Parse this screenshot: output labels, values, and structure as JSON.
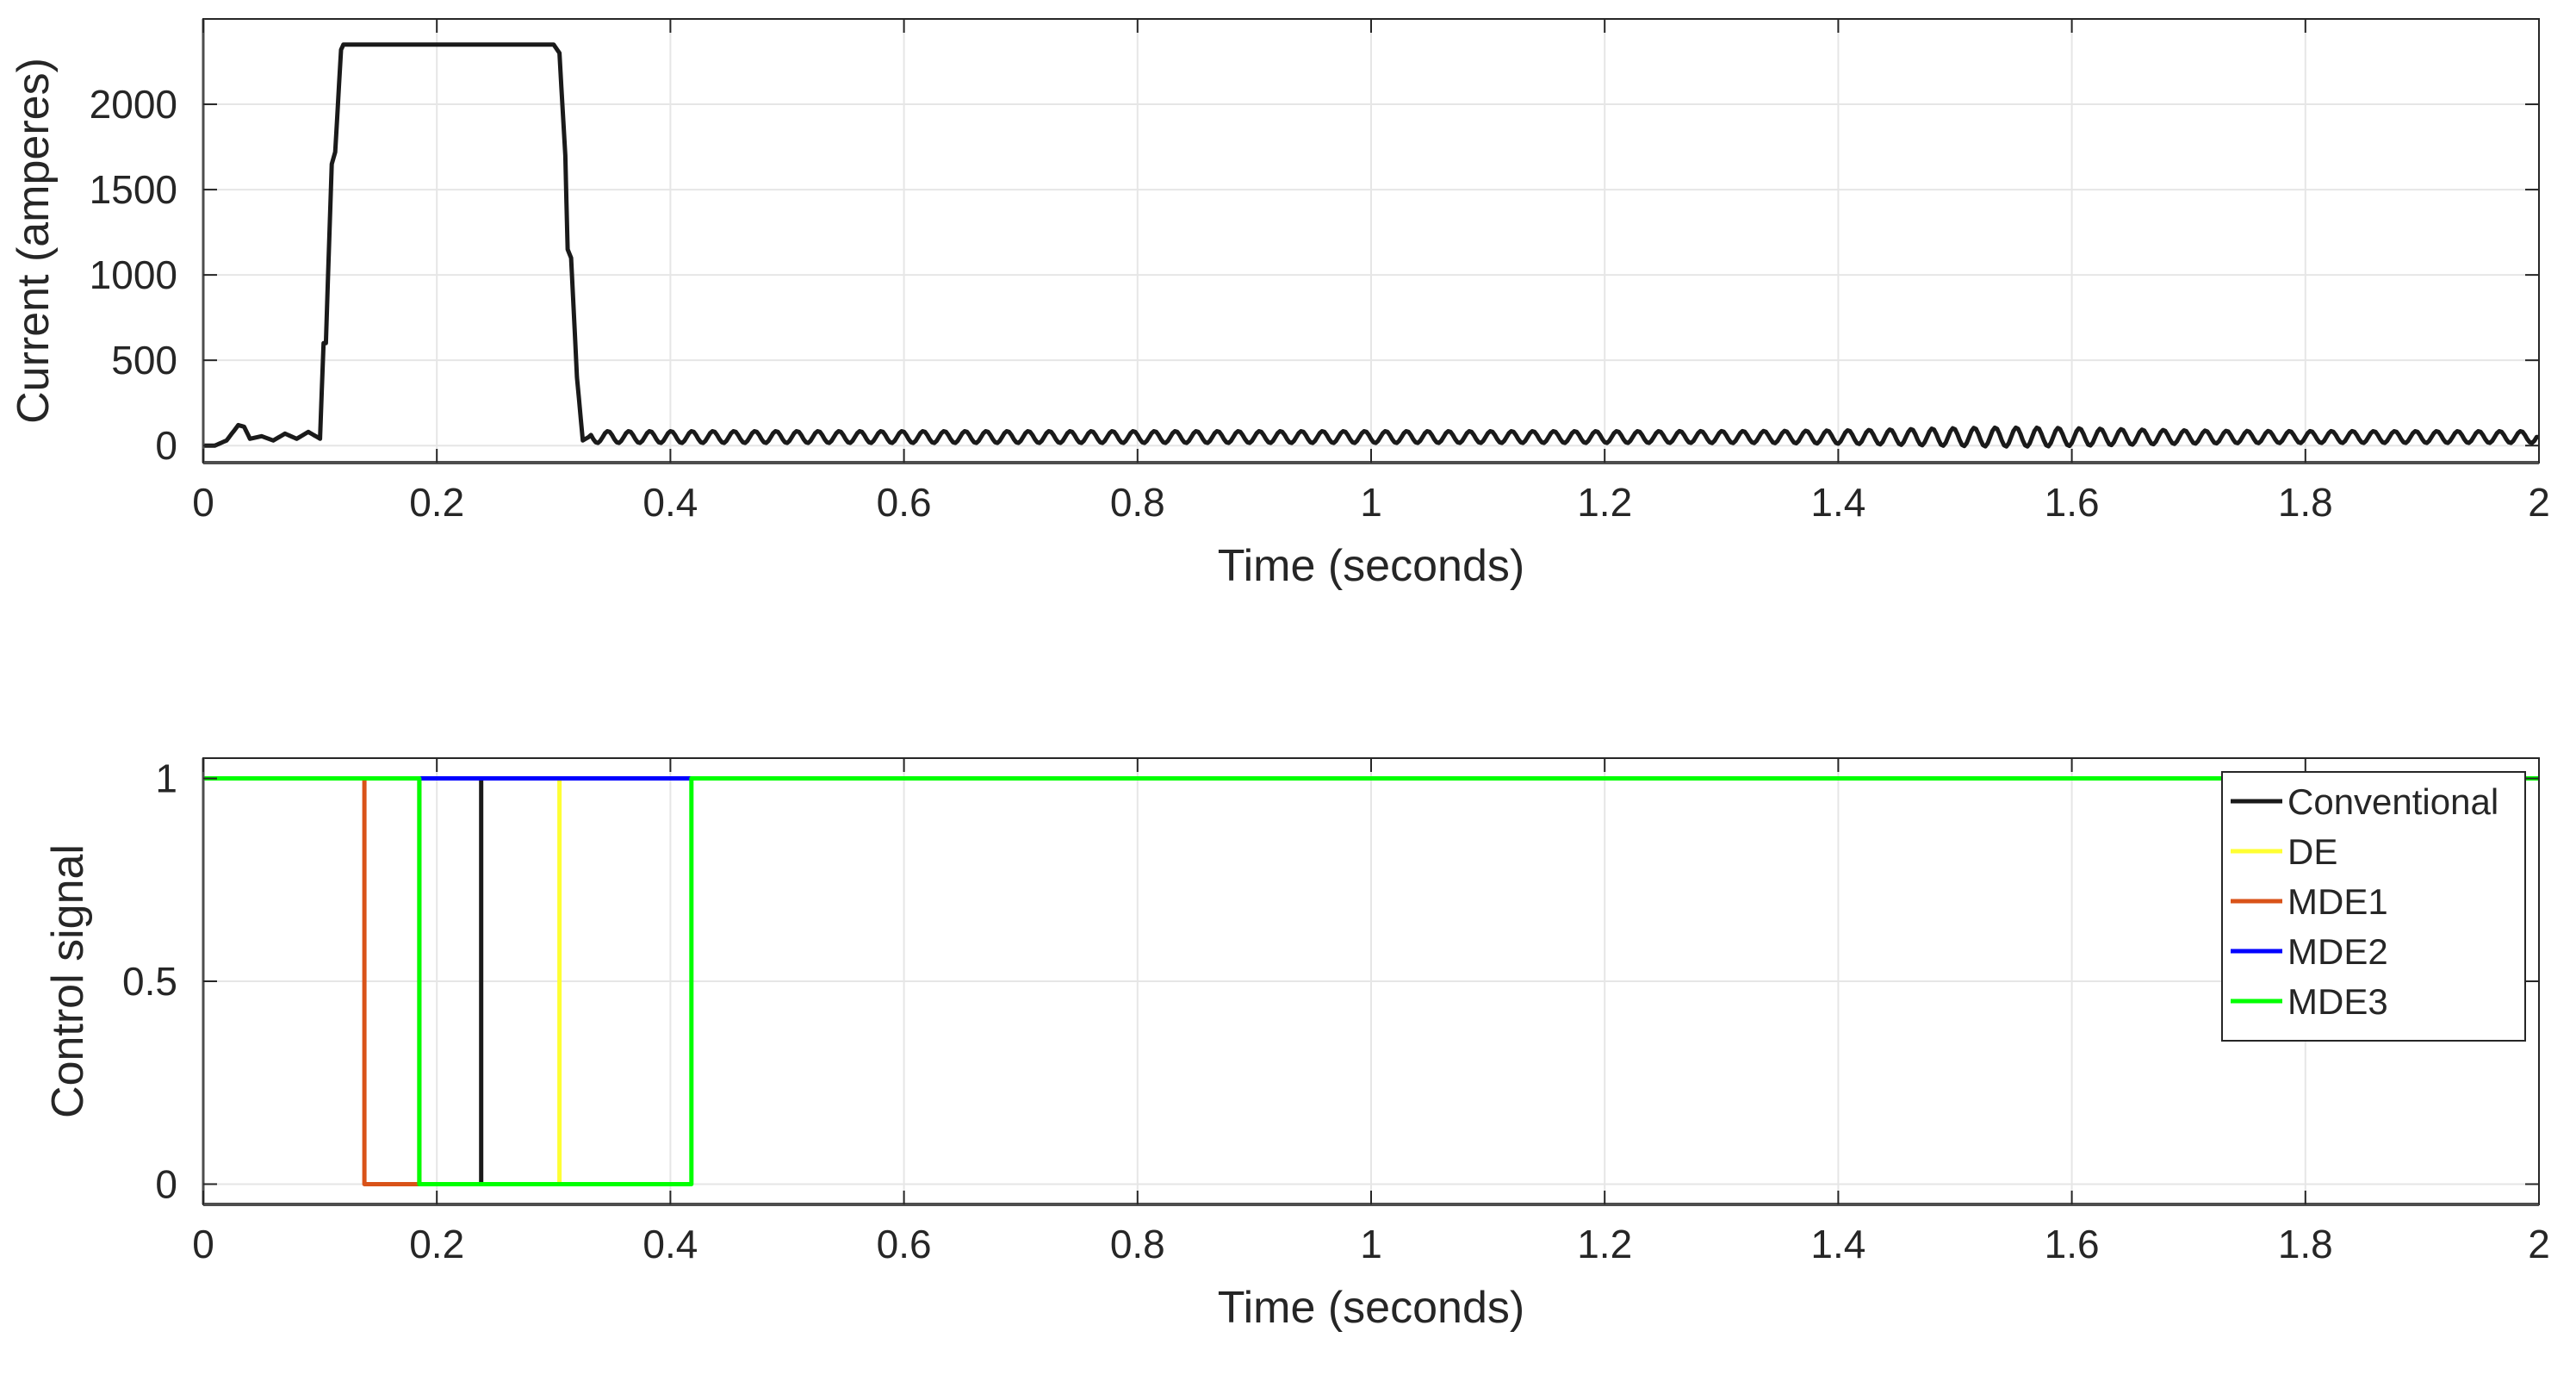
{
  "chart_data": [
    {
      "type": "line",
      "xlabel": "Time (seconds)",
      "ylabel": "Current (amperes)",
      "xlim": [
        0,
        2
      ],
      "ylim": [
        -100,
        2500
      ],
      "xticks": [
        0,
        0.2,
        0.4,
        0.6,
        0.8,
        1,
        1.2,
        1.4,
        1.6,
        1.8,
        2
      ],
      "xtick_labels": [
        "0",
        "0.2",
        "0.4",
        "0.6",
        "0.8",
        "1",
        "1.2",
        "1.4",
        "1.6",
        "1.8",
        "2"
      ],
      "yticks": [
        0,
        500,
        1000,
        1500,
        2000
      ],
      "ytick_labels": [
        "0",
        "500",
        "1000",
        "1500",
        "2000"
      ],
      "grid": true,
      "colors": {
        "line": "#1a1a1a"
      },
      "series": [
        {
          "x": [
            0,
            0.01,
            0.02,
            0.03,
            0.035,
            0.04,
            0.05,
            0.06,
            0.07,
            0.08,
            0.09,
            0.1,
            0.103,
            0.105,
            0.11,
            0.113,
            0.118,
            0.12,
            0.2,
            0.3,
            0.305,
            0.31,
            0.312,
            0.315,
            0.32,
            0.325,
            0.33,
            2
          ],
          "y": [
            0,
            0,
            30,
            120,
            110,
            40,
            55,
            30,
            70,
            40,
            80,
            40,
            600,
            600,
            1650,
            1720,
            2320,
            2350,
            2350,
            2350,
            2300,
            1700,
            1150,
            1100,
            400,
            30,
            50,
            50
          ],
          "ripple_amplitude": 35,
          "ripple_period": 0.018
        }
      ]
    },
    {
      "type": "line",
      "xlabel": "Time (seconds)",
      "ylabel": "Control signal",
      "xlim": [
        0,
        2
      ],
      "ylim": [
        -0.05,
        1.05
      ],
      "xticks": [
        0,
        0.2,
        0.4,
        0.6,
        0.8,
        1,
        1.2,
        1.4,
        1.6,
        1.8,
        2
      ],
      "xtick_labels": [
        "0",
        "0.2",
        "0.4",
        "0.6",
        "0.8",
        "1",
        "1.2",
        "1.4",
        "1.6",
        "1.8",
        "2"
      ],
      "yticks": [
        0,
        0.5,
        1
      ],
      "ytick_labels": [
        "0",
        "0.5",
        "1"
      ],
      "grid": true,
      "legend_position": "top-right",
      "series": [
        {
          "name": "Conventional",
          "color": "#1a1a1a",
          "x": [
            0,
            0.238,
            0.238,
            0.238,
            0.238,
            2
          ],
          "y": [
            1,
            1,
            0,
            0,
            1,
            1
          ]
        },
        {
          "name": "DE",
          "color": "#ffff33",
          "x": [
            0,
            0.305,
            0.305,
            0.305,
            0.305,
            2
          ],
          "y": [
            1,
            1,
            0,
            0,
            1,
            1
          ]
        },
        {
          "name": "MDE1",
          "color": "#d95319",
          "x": [
            0,
            0.138,
            0.138,
            0.185,
            0.185,
            2
          ],
          "y": [
            1,
            1,
            0,
            0,
            1,
            1
          ]
        },
        {
          "name": "MDE2",
          "color": "#0000ff",
          "x": [
            0,
            0.185,
            0.185,
            0.418,
            0.418,
            2
          ],
          "y": [
            1,
            1,
            1,
            1,
            1,
            1
          ]
        },
        {
          "name": "MDE3",
          "color": "#00ff00",
          "x": [
            0,
            0.185,
            0.185,
            0.418,
            0.418,
            2
          ],
          "y": [
            1,
            1,
            0,
            0,
            1,
            1
          ]
        }
      ]
    }
  ]
}
